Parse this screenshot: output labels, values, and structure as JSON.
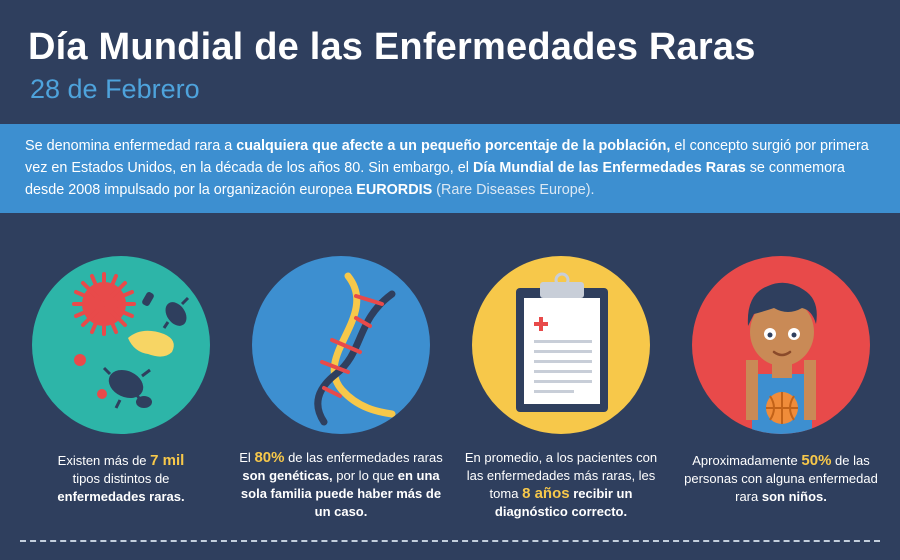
{
  "header": {
    "title": "Día Mundial de las Enfermedades Raras",
    "date": "28 de Febrero"
  },
  "intro": {
    "p1": "Se denomina enfermedad rara a ",
    "b1": "cualquiera que afecte a un pequeño porcentaje de la población,",
    "p2": " el concepto surgió por primera vez en Estados Unidos, en la década de los años 80. Sin embargo, el ",
    "b2": "Día Mundial de las Enfermedades Raras",
    "p3": " se conmemora desde 2008 impulsado por la organización europea ",
    "b3": "EURORDIS",
    "p4": " (Rare Diseases Europe)."
  },
  "facts": [
    {
      "icon": "germs-icon",
      "t1": "Existen más de ",
      "hl": "7 mil",
      "t2": " tipos distintos de ",
      "b": "enfermedades raras."
    },
    {
      "icon": "dna-icon",
      "t1": "El ",
      "hl": "80%",
      "t2": " de las enfermedades raras ",
      "b1": "son genéticas,",
      "t3": " por lo que ",
      "b2": "en una sola familia puede haber más de un caso."
    },
    {
      "icon": "clipboard-icon",
      "t1": "En promedio, a los pacientes con las enfermedades más raras, les toma ",
      "hl": "8 años",
      "b": " recibir un diagnóstico correcto."
    },
    {
      "icon": "boy-basketball-icon",
      "t1": "Aproximadamente ",
      "hl": "50%",
      "t2": " de las personas con alguna enfermedad rara ",
      "b": "son niños."
    }
  ],
  "colors": {
    "background": "#2f3f5e",
    "band": "#3d8fd0",
    "accent_yellow": "#f7c84a",
    "teal": "#2db5a8",
    "red": "#e84a4a"
  }
}
